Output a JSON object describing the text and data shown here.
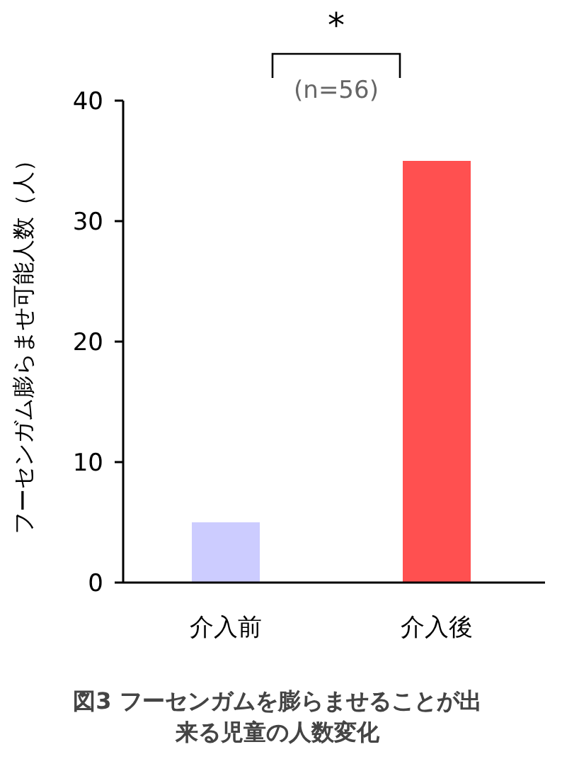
{
  "chart_data": {
    "type": "bar",
    "title": "図3 フーセンガムを膨らませることが出来る児童の人数変化",
    "ylabel": "フーセンガム膨らませ可能人数（人）",
    "categories": [
      "介入前",
      "介入後"
    ],
    "values": [
      5,
      35
    ],
    "colors": [
      "#ccccff",
      "#ff5050"
    ],
    "ylim": [
      0,
      40
    ],
    "yticks": [
      0,
      10,
      20,
      30,
      40
    ],
    "grid": false,
    "annotations": [
      "*",
      "(n=56)"
    ]
  }
}
